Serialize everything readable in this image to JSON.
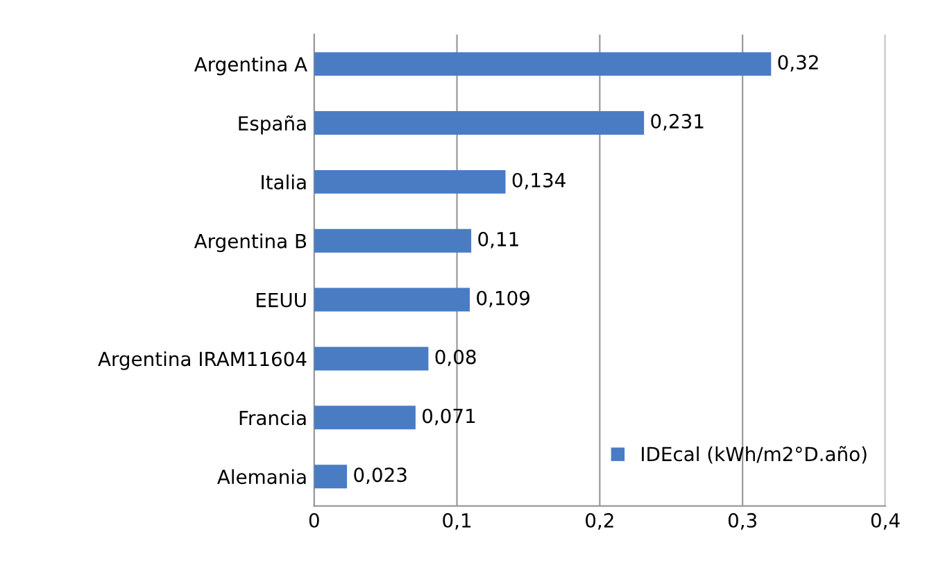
{
  "chart_data": {
    "type": "bar",
    "orientation": "horizontal",
    "categories": [
      "Argentina A",
      "España",
      "Italia",
      "Argentina B",
      "EEUU",
      "Argentina IRAM11604",
      "Francia",
      "Alemania"
    ],
    "series": [
      {
        "name": "IDEcal (kWh/m2°D.año)",
        "color": "#4a7cc4",
        "values": [
          0.32,
          0.231,
          0.134,
          0.11,
          0.109,
          0.08,
          0.071,
          0.023
        ],
        "value_labels": [
          "0,32",
          "0,231",
          "0,134",
          "0,11",
          "0,109",
          "0,08",
          "0,071",
          "0,023"
        ]
      }
    ],
    "xlim": [
      0,
      0.4
    ],
    "xticks": [
      0,
      {
        "value": 0.1,
        "label": "0,1"
      },
      {
        "value": 0.2,
        "label": "0,2"
      },
      {
        "value": 0.3,
        "label": "0,3"
      },
      {
        "value": 0.4,
        "label": "0,4"
      }
    ],
    "grid": "x",
    "legend": "bottom right"
  }
}
